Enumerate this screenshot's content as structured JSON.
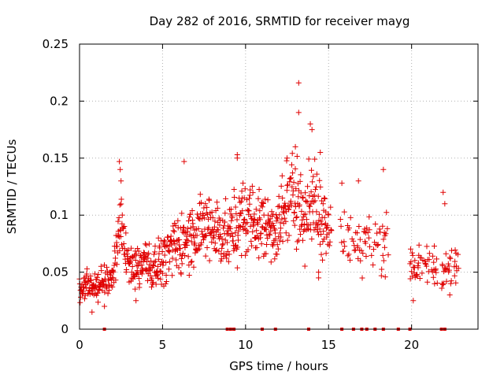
{
  "chart_data": {
    "type": "scatter",
    "title": "Day 282 of 2016, SRMTID for receiver mayg",
    "xlabel": "GPS time / hours",
    "ylabel": "SRMTID / TECUs",
    "xlim": [
      0,
      24
    ],
    "ylim": [
      0,
      0.25
    ],
    "x_ticks": [
      0,
      5,
      10,
      15,
      20
    ],
    "x_tick_labels": [
      "0",
      "5",
      "10",
      "15",
      "20"
    ],
    "y_ticks": [
      0,
      0.05,
      0.1,
      0.15,
      0.2,
      0.25
    ],
    "y_tick_labels": [
      "0",
      "0.05",
      "0.1",
      "0.15",
      "0.2",
      "0.25"
    ],
    "grid": true,
    "series": [
      {
        "name": "SRMTID",
        "marker": "+",
        "color": "#e00000",
        "trend": [
          [
            0.0,
            0.035
          ],
          [
            0.5,
            0.037
          ],
          [
            1.0,
            0.036
          ],
          [
            1.5,
            0.04
          ],
          [
            2.0,
            0.05
          ],
          [
            2.3,
            0.08
          ],
          [
            2.5,
            0.1
          ],
          [
            2.7,
            0.07
          ],
          [
            3.0,
            0.055
          ],
          [
            4.0,
            0.055
          ],
          [
            5.0,
            0.06
          ],
          [
            6.0,
            0.075
          ],
          [
            7.0,
            0.085
          ],
          [
            8.0,
            0.09
          ],
          [
            9.0,
            0.08
          ],
          [
            10.0,
            0.1
          ],
          [
            11.0,
            0.09
          ],
          [
            12.0,
            0.09
          ],
          [
            12.5,
            0.11
          ],
          [
            13.0,
            0.12
          ],
          [
            13.5,
            0.1
          ],
          [
            14.0,
            0.11
          ],
          [
            14.5,
            0.1
          ],
          [
            16.0,
            0.08
          ],
          [
            17.0,
            0.075
          ],
          [
            18.0,
            0.08
          ],
          [
            20.0,
            0.055
          ],
          [
            21.0,
            0.055
          ],
          [
            22.0,
            0.05
          ],
          [
            23.0,
            0.055
          ]
        ],
        "highlights": [
          [
            2.4,
            0.147
          ],
          [
            2.45,
            0.14
          ],
          [
            2.5,
            0.13
          ],
          [
            6.3,
            0.147
          ],
          [
            9.5,
            0.15
          ],
          [
            9.5,
            0.153
          ],
          [
            12.5,
            0.15
          ],
          [
            13.0,
            0.16
          ],
          [
            13.2,
            0.19
          ],
          [
            13.2,
            0.216
          ],
          [
            13.9,
            0.18
          ],
          [
            14.0,
            0.175
          ],
          [
            14.5,
            0.155
          ],
          [
            15.8,
            0.128
          ],
          [
            16.8,
            0.13
          ],
          [
            18.3,
            0.14
          ],
          [
            21.9,
            0.12
          ],
          [
            22.0,
            0.11
          ],
          [
            0.75,
            0.015
          ],
          [
            1.5,
            0.02
          ],
          [
            3.4,
            0.025
          ],
          [
            20.1,
            0.025
          ],
          [
            22.3,
            0.03
          ],
          [
            14.4,
            0.045
          ],
          [
            14.4,
            0.05
          ]
        ]
      }
    ],
    "zero_markers_x": [
      1.5,
      8.9,
      9.1,
      9.3,
      11.0,
      11.8,
      13.8,
      15.8,
      16.5,
      17.0,
      17.3,
      17.8,
      18.3,
      19.2,
      19.9,
      21.8,
      22.0
    ]
  }
}
